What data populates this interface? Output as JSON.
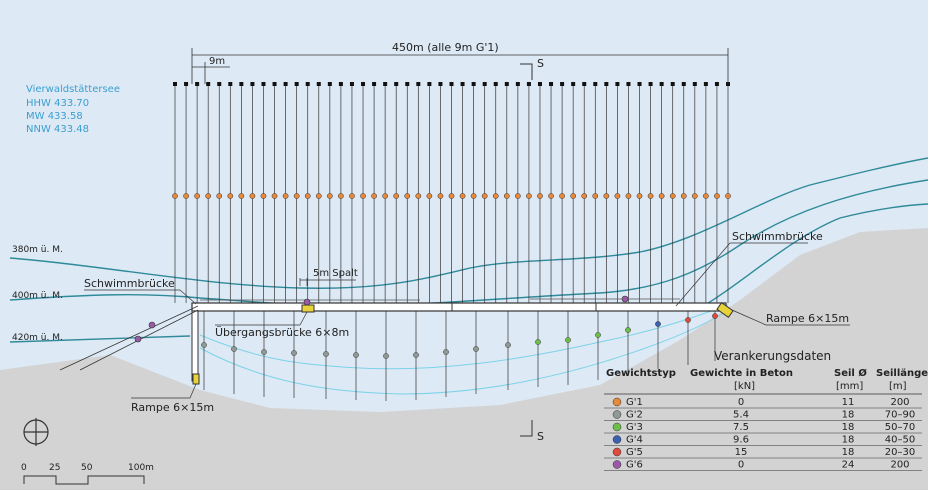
{
  "lake": {
    "name": "Vierwaldstättersee",
    "hhw": "HHW 433.70",
    "mw": "MW 433.58",
    "nnw": "NNW 433.48"
  },
  "dimensions": {
    "total": "450m (alle 9m G'1)",
    "spacing": "9m",
    "section_mark": "S",
    "gap": "5m Spalt"
  },
  "contours": [
    "380m ü. M.",
    "400m ü. M.",
    "420m ü. M."
  ],
  "labels": {
    "schwimmbruecke_left": "Schwimmbrücke",
    "schwimmbruecke_right": "Schwimmbrücke",
    "uebergangsbruecke": "Übergangsbrücke 6×8m",
    "rampe_right": "Rampe 6×15m",
    "rampe_left": "Rampe 6×15m"
  },
  "scale": {
    "ticks": [
      "0",
      "25",
      "50",
      "100m"
    ]
  },
  "table": {
    "title": "Verankerungsdaten",
    "headers": [
      "Gewichtstyp",
      "Gewichte in Beton",
      "Seil Ø",
      "Seillänge"
    ],
    "units": [
      "",
      "[kN]",
      "[mm]",
      "[m]"
    ],
    "rows": [
      {
        "type": "G'1",
        "weight": "0",
        "rope": "11",
        "length": "200",
        "color": "#e8883a"
      },
      {
        "type": "G'2",
        "weight": "5.4",
        "rope": "18",
        "length": "70–90",
        "color": "#8f9a95"
      },
      {
        "type": "G'3",
        "weight": "7.5",
        "rope": "18",
        "length": "50–70",
        "color": "#6cc04a"
      },
      {
        "type": "G'4",
        "weight": "9.6",
        "rope": "18",
        "length": "40–50",
        "color": "#3c5fb0"
      },
      {
        "type": "G'5",
        "weight": "15",
        "rope": "18",
        "length": "20–30",
        "color": "#e04a3a"
      },
      {
        "type": "G'6",
        "weight": "0",
        "rope": "24",
        "length": "200",
        "color": "#9a5aa8"
      }
    ]
  },
  "colors": {
    "water": "#dde9f5",
    "land": "#d3d3d3",
    "contour": "#2f8a9a",
    "accent_text": "#3a9fd0"
  }
}
